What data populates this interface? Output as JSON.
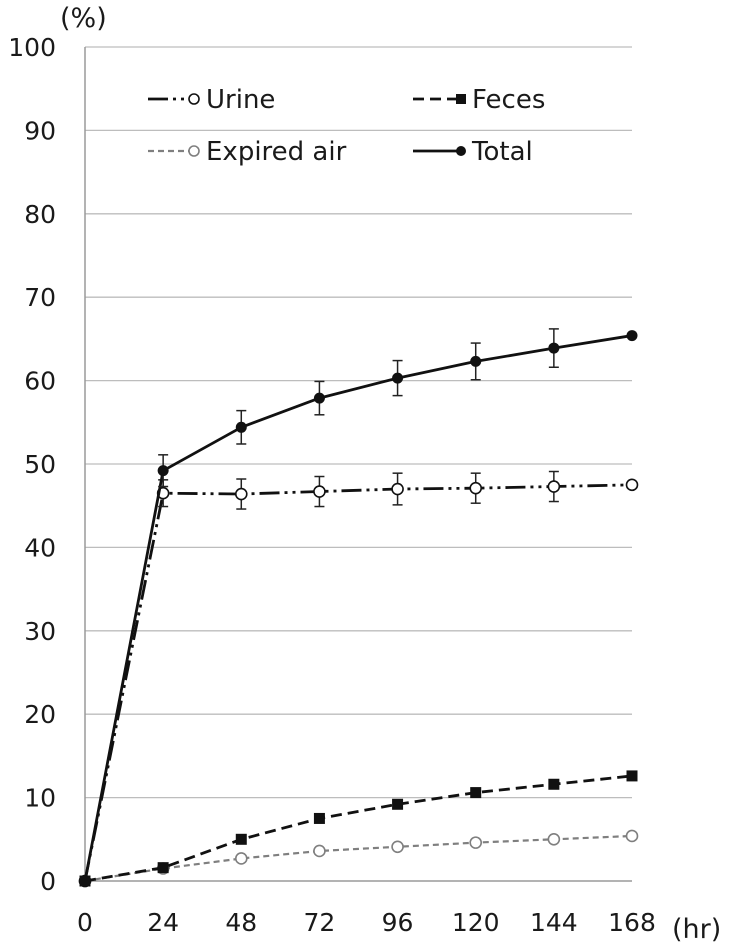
{
  "chart_data": {
    "type": "line",
    "title": "",
    "xlabel": "(hr)",
    "ylabel": "(%)",
    "x": [
      0,
      24,
      48,
      72,
      96,
      120,
      144,
      168
    ],
    "x_tick_labels": [
      "0",
      "24",
      "48",
      "72",
      "96",
      "120",
      "144",
      "168"
    ],
    "y_tick_labels": [
      "0",
      "10",
      "20",
      "30",
      "40",
      "50",
      "60",
      "70",
      "80",
      "90",
      "100"
    ],
    "xlim": [
      0,
      168
    ],
    "ylim": [
      0,
      100
    ],
    "grid": "horizontal",
    "legend_position": "top",
    "series": [
      {
        "name": "Urine",
        "style": "dash-dot-dot",
        "marker": "open-circle",
        "color": "#111111",
        "values": [
          0,
          46.5,
          46.4,
          46.7,
          47.0,
          47.1,
          47.3,
          47.5
        ],
        "error": [
          0,
          1.6,
          1.8,
          1.8,
          1.9,
          1.8,
          1.8,
          0
        ]
      },
      {
        "name": "Feces",
        "style": "dashed",
        "marker": "filled-square",
        "color": "#111111",
        "values": [
          0,
          1.6,
          5.0,
          7.5,
          9.2,
          10.6,
          11.6,
          12.6
        ],
        "error": [
          0,
          0,
          0,
          0,
          0,
          0,
          0,
          0
        ]
      },
      {
        "name": "Expired air",
        "style": "dashed-gray",
        "marker": "open-circle",
        "color": "#7f7f7f",
        "values": [
          0,
          1.5,
          2.7,
          3.6,
          4.1,
          4.6,
          5.0,
          5.4
        ],
        "error": [
          0,
          0,
          0,
          0,
          0,
          0,
          0,
          0
        ]
      },
      {
        "name": "Total",
        "style": "solid",
        "marker": "filled-circle",
        "color": "#111111",
        "values": [
          0,
          49.2,
          54.4,
          57.9,
          60.3,
          62.3,
          63.9,
          65.4
        ],
        "error": [
          0,
          1.9,
          2.0,
          2.0,
          2.1,
          2.2,
          2.3,
          0
        ]
      }
    ]
  }
}
